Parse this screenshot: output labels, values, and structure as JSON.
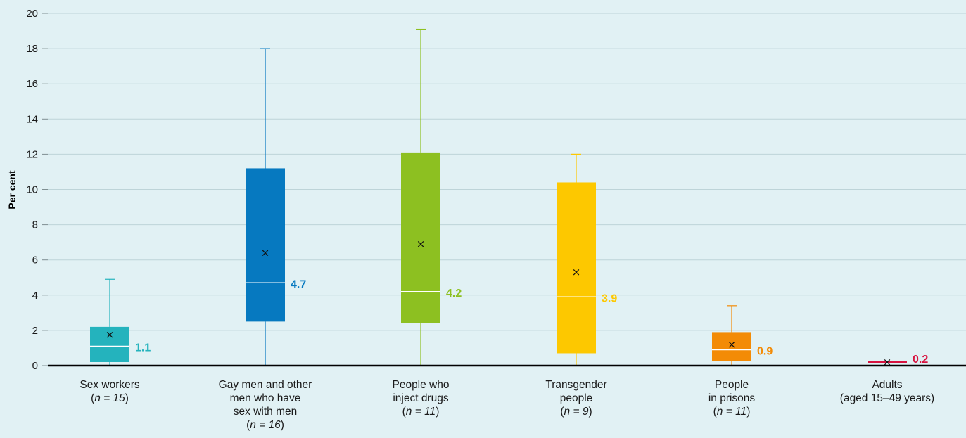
{
  "chart_data": {
    "type": "boxplot",
    "ylabel": "Per cent",
    "ylim": [
      0,
      20
    ],
    "yticks": [
      0,
      2,
      4,
      6,
      8,
      10,
      12,
      14,
      16,
      18,
      20
    ],
    "grid": true,
    "series": [
      {
        "label_lines": [
          "Sex workers"
        ],
        "n_label": "15",
        "color": "#24b3bd",
        "whisker_low": 0,
        "q1": 0.2,
        "median": 1.1,
        "mean": 1.75,
        "q3": 2.2,
        "whisker_high": 4.9,
        "median_label": "1.1"
      },
      {
        "label_lines": [
          "Gay men and other",
          "men who have",
          "sex with men"
        ],
        "n_label": "16",
        "color": "#0679c0",
        "whisker_low": 0,
        "q1": 2.5,
        "median": 4.7,
        "mean": 6.4,
        "q3": 11.2,
        "whisker_high": 18,
        "median_label": "4.7"
      },
      {
        "label_lines": [
          "People who",
          "inject drugs"
        ],
        "n_label": "11",
        "color": "#8dc021",
        "whisker_low": 0,
        "q1": 2.4,
        "median": 4.2,
        "mean": 6.9,
        "q3": 12.1,
        "whisker_high": 19.1,
        "median_label": "4.2"
      },
      {
        "label_lines": [
          "Transgender",
          "people"
        ],
        "n_label": "9",
        "color": "#fdc800",
        "whisker_low": 0,
        "q1": 0.7,
        "median": 3.9,
        "mean": 5.3,
        "q3": 10.4,
        "whisker_high": 12,
        "median_label": "3.9"
      },
      {
        "label_lines": [
          "People",
          "in prisons"
        ],
        "n_label": "11",
        "color": "#f38b06",
        "whisker_low": 0,
        "q1": 0.25,
        "median": 0.9,
        "mean": 1.2,
        "q3": 1.9,
        "whisker_high": 3.4,
        "median_label": "0.9"
      },
      {
        "label_lines": [
          "Adults",
          "(aged 15–49 years)"
        ],
        "n_label": "",
        "color": "#d81440",
        "value": 0.2,
        "mean": 0.2,
        "median_label": "0.2"
      }
    ]
  }
}
